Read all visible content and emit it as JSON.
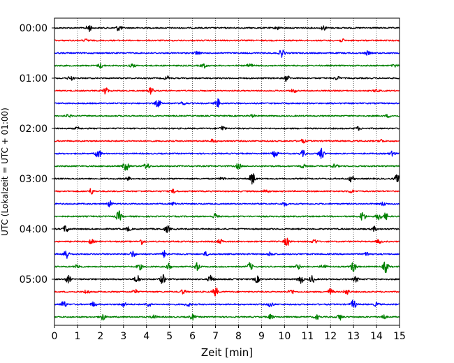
{
  "chart_data": {
    "type": "line",
    "title": "",
    "xlabel": "Zeit  [min]",
    "ylabel": "UTC (Lokalzeit = UTC + 01:00)",
    "xlim": [
      0,
      15
    ],
    "x_ticks": [
      "0",
      "1",
      "2",
      "3",
      "4",
      "5",
      "6",
      "7",
      "8",
      "9",
      "10",
      "11",
      "12",
      "13",
      "14",
      "15"
    ],
    "y_tick_labels": [
      "00:00",
      "01:00",
      "02:00",
      "03:00",
      "04:00",
      "05:00"
    ],
    "grid": "vertical dotted",
    "legend": "none",
    "trace_colors": [
      "#000000",
      "#ff0000",
      "#0000ff",
      "#008000"
    ],
    "trace_start_times": [
      "00:00",
      "00:15",
      "00:30",
      "00:45",
      "01:00",
      "01:15",
      "01:30",
      "01:45",
      "02:00",
      "02:15",
      "02:30",
      "02:45",
      "03:00",
      "03:15",
      "03:30",
      "03:45",
      "04:00",
      "04:15",
      "04:30",
      "04:45",
      "05:00",
      "05:15",
      "05:30",
      "05:45"
    ],
    "series": [
      {
        "events": [
          [
            1.5,
            1.6
          ],
          [
            2.8,
            1.4
          ],
          [
            9.7,
            0.7
          ],
          [
            11.7,
            1.0
          ]
        ]
      },
      {
        "events": [
          [
            1.4,
            0.6
          ],
          [
            12.5,
            0.6
          ]
        ]
      },
      {
        "events": [
          [
            9.9,
            1.8
          ],
          [
            6.2,
            0.8
          ],
          [
            13.6,
            0.8
          ]
        ]
      },
      {
        "events": [
          [
            2.0,
            1.0
          ],
          [
            3.4,
            0.8
          ],
          [
            6.5,
            0.9
          ],
          [
            8.5,
            0.9
          ],
          [
            14.8,
            0.6
          ]
        ]
      },
      {
        "events": [
          [
            0.7,
            1.0
          ],
          [
            4.9,
            0.9
          ],
          [
            10.1,
            1.4
          ],
          [
            12.3,
            0.8
          ]
        ]
      },
      {
        "events": [
          [
            2.2,
            1.8
          ],
          [
            4.2,
            1.4
          ],
          [
            10.4,
            0.8
          ],
          [
            14.0,
            0.7
          ]
        ]
      },
      {
        "events": [
          [
            4.5,
            1.6
          ],
          [
            7.1,
            1.9
          ],
          [
            5.6,
            0.8
          ]
        ]
      },
      {
        "events": [
          [
            0.6,
            0.6
          ],
          [
            8.6,
            0.5
          ],
          [
            14.5,
            0.6
          ]
        ]
      },
      {
        "events": [
          [
            7.3,
            1.2
          ],
          [
            1.0,
            0.5
          ],
          [
            13.2,
            0.7
          ]
        ]
      },
      {
        "events": [
          [
            6.9,
            0.9
          ],
          [
            10.8,
            0.8
          ],
          [
            14.2,
            0.7
          ]
        ]
      },
      {
        "events": [
          [
            1.9,
            2.2
          ],
          [
            9.6,
            1.5
          ],
          [
            11.6,
            2.6
          ],
          [
            10.8,
            1.3
          ],
          [
            14.7,
            1.0
          ]
        ]
      },
      {
        "events": [
          [
            3.1,
            2.2
          ],
          [
            4.0,
            1.6
          ],
          [
            8.0,
            1.2
          ],
          [
            10.8,
            0.8
          ],
          [
            12.2,
            0.9
          ]
        ]
      },
      {
        "events": [
          [
            8.6,
            2.8
          ],
          [
            12.9,
            1.4
          ],
          [
            14.9,
            1.6
          ],
          [
            3.2,
            0.7
          ],
          [
            7.3,
            0.6
          ]
        ]
      },
      {
        "events": [
          [
            1.6,
            1.3
          ],
          [
            5.2,
            0.9
          ],
          [
            9.2,
            0.8
          ],
          [
            12.9,
            0.7
          ]
        ]
      },
      {
        "events": [
          [
            2.4,
            1.3
          ],
          [
            5.2,
            0.8
          ],
          [
            10.0,
            0.9
          ],
          [
            14.3,
            0.8
          ]
        ]
      },
      {
        "events": [
          [
            2.8,
            2.3
          ],
          [
            7.0,
            1.3
          ],
          [
            13.4,
            2.2
          ],
          [
            14.1,
            1.7
          ],
          [
            14.4,
            1.4
          ]
        ]
      },
      {
        "events": [
          [
            0.5,
            1.7
          ],
          [
            4.9,
            1.5
          ],
          [
            3.2,
            0.9
          ],
          [
            13.9,
            1.0
          ]
        ]
      },
      {
        "events": [
          [
            1.6,
            1.0
          ],
          [
            3.8,
            1.2
          ],
          [
            7.2,
            1.0
          ],
          [
            10.1,
            1.9
          ],
          [
            11.3,
            1.0
          ],
          [
            14.1,
            0.8
          ]
        ]
      },
      {
        "events": [
          [
            0.5,
            2.5
          ],
          [
            3.4,
            1.4
          ],
          [
            4.8,
            1.5
          ],
          [
            6.6,
            0.9
          ],
          [
            9.4,
            1.0
          ],
          [
            13.6,
            0.9
          ]
        ]
      },
      {
        "events": [
          [
            1.0,
            1.0
          ],
          [
            3.7,
            1.3
          ],
          [
            5.0,
            1.4
          ],
          [
            6.2,
            1.7
          ],
          [
            8.5,
            1.7
          ],
          [
            10.6,
            1.0
          ],
          [
            11.7,
            1.1
          ],
          [
            13.0,
            2.3
          ],
          [
            14.4,
            2.5
          ]
        ]
      },
      {
        "events": [
          [
            0.6,
            1.6
          ],
          [
            3.6,
            2.0
          ],
          [
            4.7,
            2.1
          ],
          [
            6.8,
            1.8
          ],
          [
            8.8,
            1.4
          ],
          [
            10.7,
            1.9
          ],
          [
            11.2,
            1.6
          ],
          [
            13.1,
            1.2
          ]
        ]
      },
      {
        "events": [
          [
            1.4,
            1.0
          ],
          [
            3.5,
            1.0
          ],
          [
            5.6,
            1.0
          ],
          [
            7.0,
            1.9
          ],
          [
            10.3,
            1.1
          ],
          [
            12.0,
            1.4
          ],
          [
            12.7,
            1.3
          ]
        ]
      },
      {
        "events": [
          [
            0.4,
            1.6
          ],
          [
            1.7,
            1.1
          ],
          [
            3.0,
            1.0
          ],
          [
            4.1,
            1.0
          ],
          [
            5.8,
            0.9
          ],
          [
            9.4,
            1.1
          ],
          [
            13.0,
            1.9
          ],
          [
            14.0,
            0.8
          ]
        ]
      },
      {
        "events": [
          [
            2.1,
            1.4
          ],
          [
            4.3,
            1.0
          ],
          [
            6.0,
            1.2
          ],
          [
            9.4,
            1.0
          ],
          [
            11.4,
            1.0
          ],
          [
            12.4,
            1.3
          ],
          [
            14.3,
            1.0
          ]
        ]
      }
    ]
  }
}
